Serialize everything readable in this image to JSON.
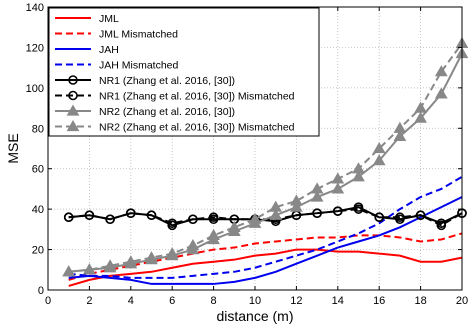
{
  "chart_data": {
    "type": "line",
    "title": "",
    "xlabel": "distance (m)",
    "ylabel": "MSE",
    "xlim": [
      0,
      20
    ],
    "ylim": [
      0,
      140
    ],
    "xticks": [
      0,
      2,
      4,
      6,
      8,
      10,
      12,
      14,
      16,
      18,
      20
    ],
    "yticks": [
      0,
      20,
      40,
      60,
      80,
      100,
      120,
      140
    ],
    "grid": true,
    "legend_position": "top-left",
    "x": [
      1,
      2,
      3,
      4,
      5,
      6,
      7,
      8,
      9,
      10,
      11,
      12,
      13,
      14,
      15,
      16,
      17,
      18,
      19,
      20
    ],
    "series": [
      {
        "name": "JML",
        "color": "#ff0000",
        "dash": "solid",
        "marker": "none",
        "values": [
          2,
          5,
          7,
          8,
          9,
          11,
          13,
          14,
          15,
          17,
          18,
          20,
          20,
          19,
          19,
          18,
          17,
          14,
          14,
          16
        ]
      },
      {
        "name": "JML Mismatched",
        "color": "#ff0000",
        "dash": "dashed",
        "marker": "none",
        "values": [
          5,
          8,
          10,
          12,
          14,
          16,
          18,
          20,
          21,
          23,
          24,
          25,
          26,
          26,
          27,
          27,
          26,
          24,
          25,
          28
        ]
      },
      {
        "name": "JAH",
        "color": "#0000ee",
        "dash": "solid",
        "marker": "none",
        "values": [
          6,
          7,
          6,
          5,
          3,
          3,
          3,
          3,
          4,
          6,
          9,
          13,
          17,
          21,
          24,
          27,
          31,
          36,
          41,
          46
        ]
      },
      {
        "name": "JAH Mismatched",
        "color": "#0000ee",
        "dash": "dashed",
        "marker": "none",
        "values": [
          8,
          7,
          7,
          6,
          6,
          6,
          7,
          8,
          9,
          11,
          14,
          17,
          20,
          24,
          28,
          33,
          40,
          46,
          50,
          56
        ]
      },
      {
        "name": "NR1 (Zhang et al. 2016, [30])",
        "color": "#000000",
        "dash": "solid",
        "marker": "circle",
        "values": [
          36,
          37,
          35,
          38,
          37,
          32,
          35,
          35,
          35,
          35,
          34,
          37,
          38,
          39,
          41,
          36,
          35,
          37,
          33,
          38
        ]
      },
      {
        "name": "NR1 (Zhang et al. 2016, [30]) Mismatched",
        "color": "#000000",
        "dash": "dashed",
        "marker": "circle",
        "values": [
          36,
          37,
          35,
          38,
          37,
          33,
          35,
          36,
          35,
          35,
          35,
          37,
          38,
          39,
          40,
          36,
          36,
          37,
          32,
          38
        ]
      },
      {
        "name": "NR2 (Zhang et al. 2016, [30])",
        "color": "#888888",
        "dash": "solid",
        "marker": "triangle",
        "values": [
          9,
          10,
          11,
          13,
          15,
          17,
          20,
          25,
          29,
          33,
          37,
          41,
          46,
          50,
          56,
          64,
          76,
          85,
          97,
          117
        ]
      },
      {
        "name": "NR2 (Zhang et al. 2016, [30]) Mismatched",
        "color": "#888888",
        "dash": "dashed",
        "marker": "triangle",
        "values": [
          9,
          10,
          12,
          14,
          16,
          18,
          22,
          27,
          31,
          35,
          41,
          44,
          50,
          55,
          60,
          70,
          80,
          90,
          108,
          122
        ]
      }
    ]
  }
}
